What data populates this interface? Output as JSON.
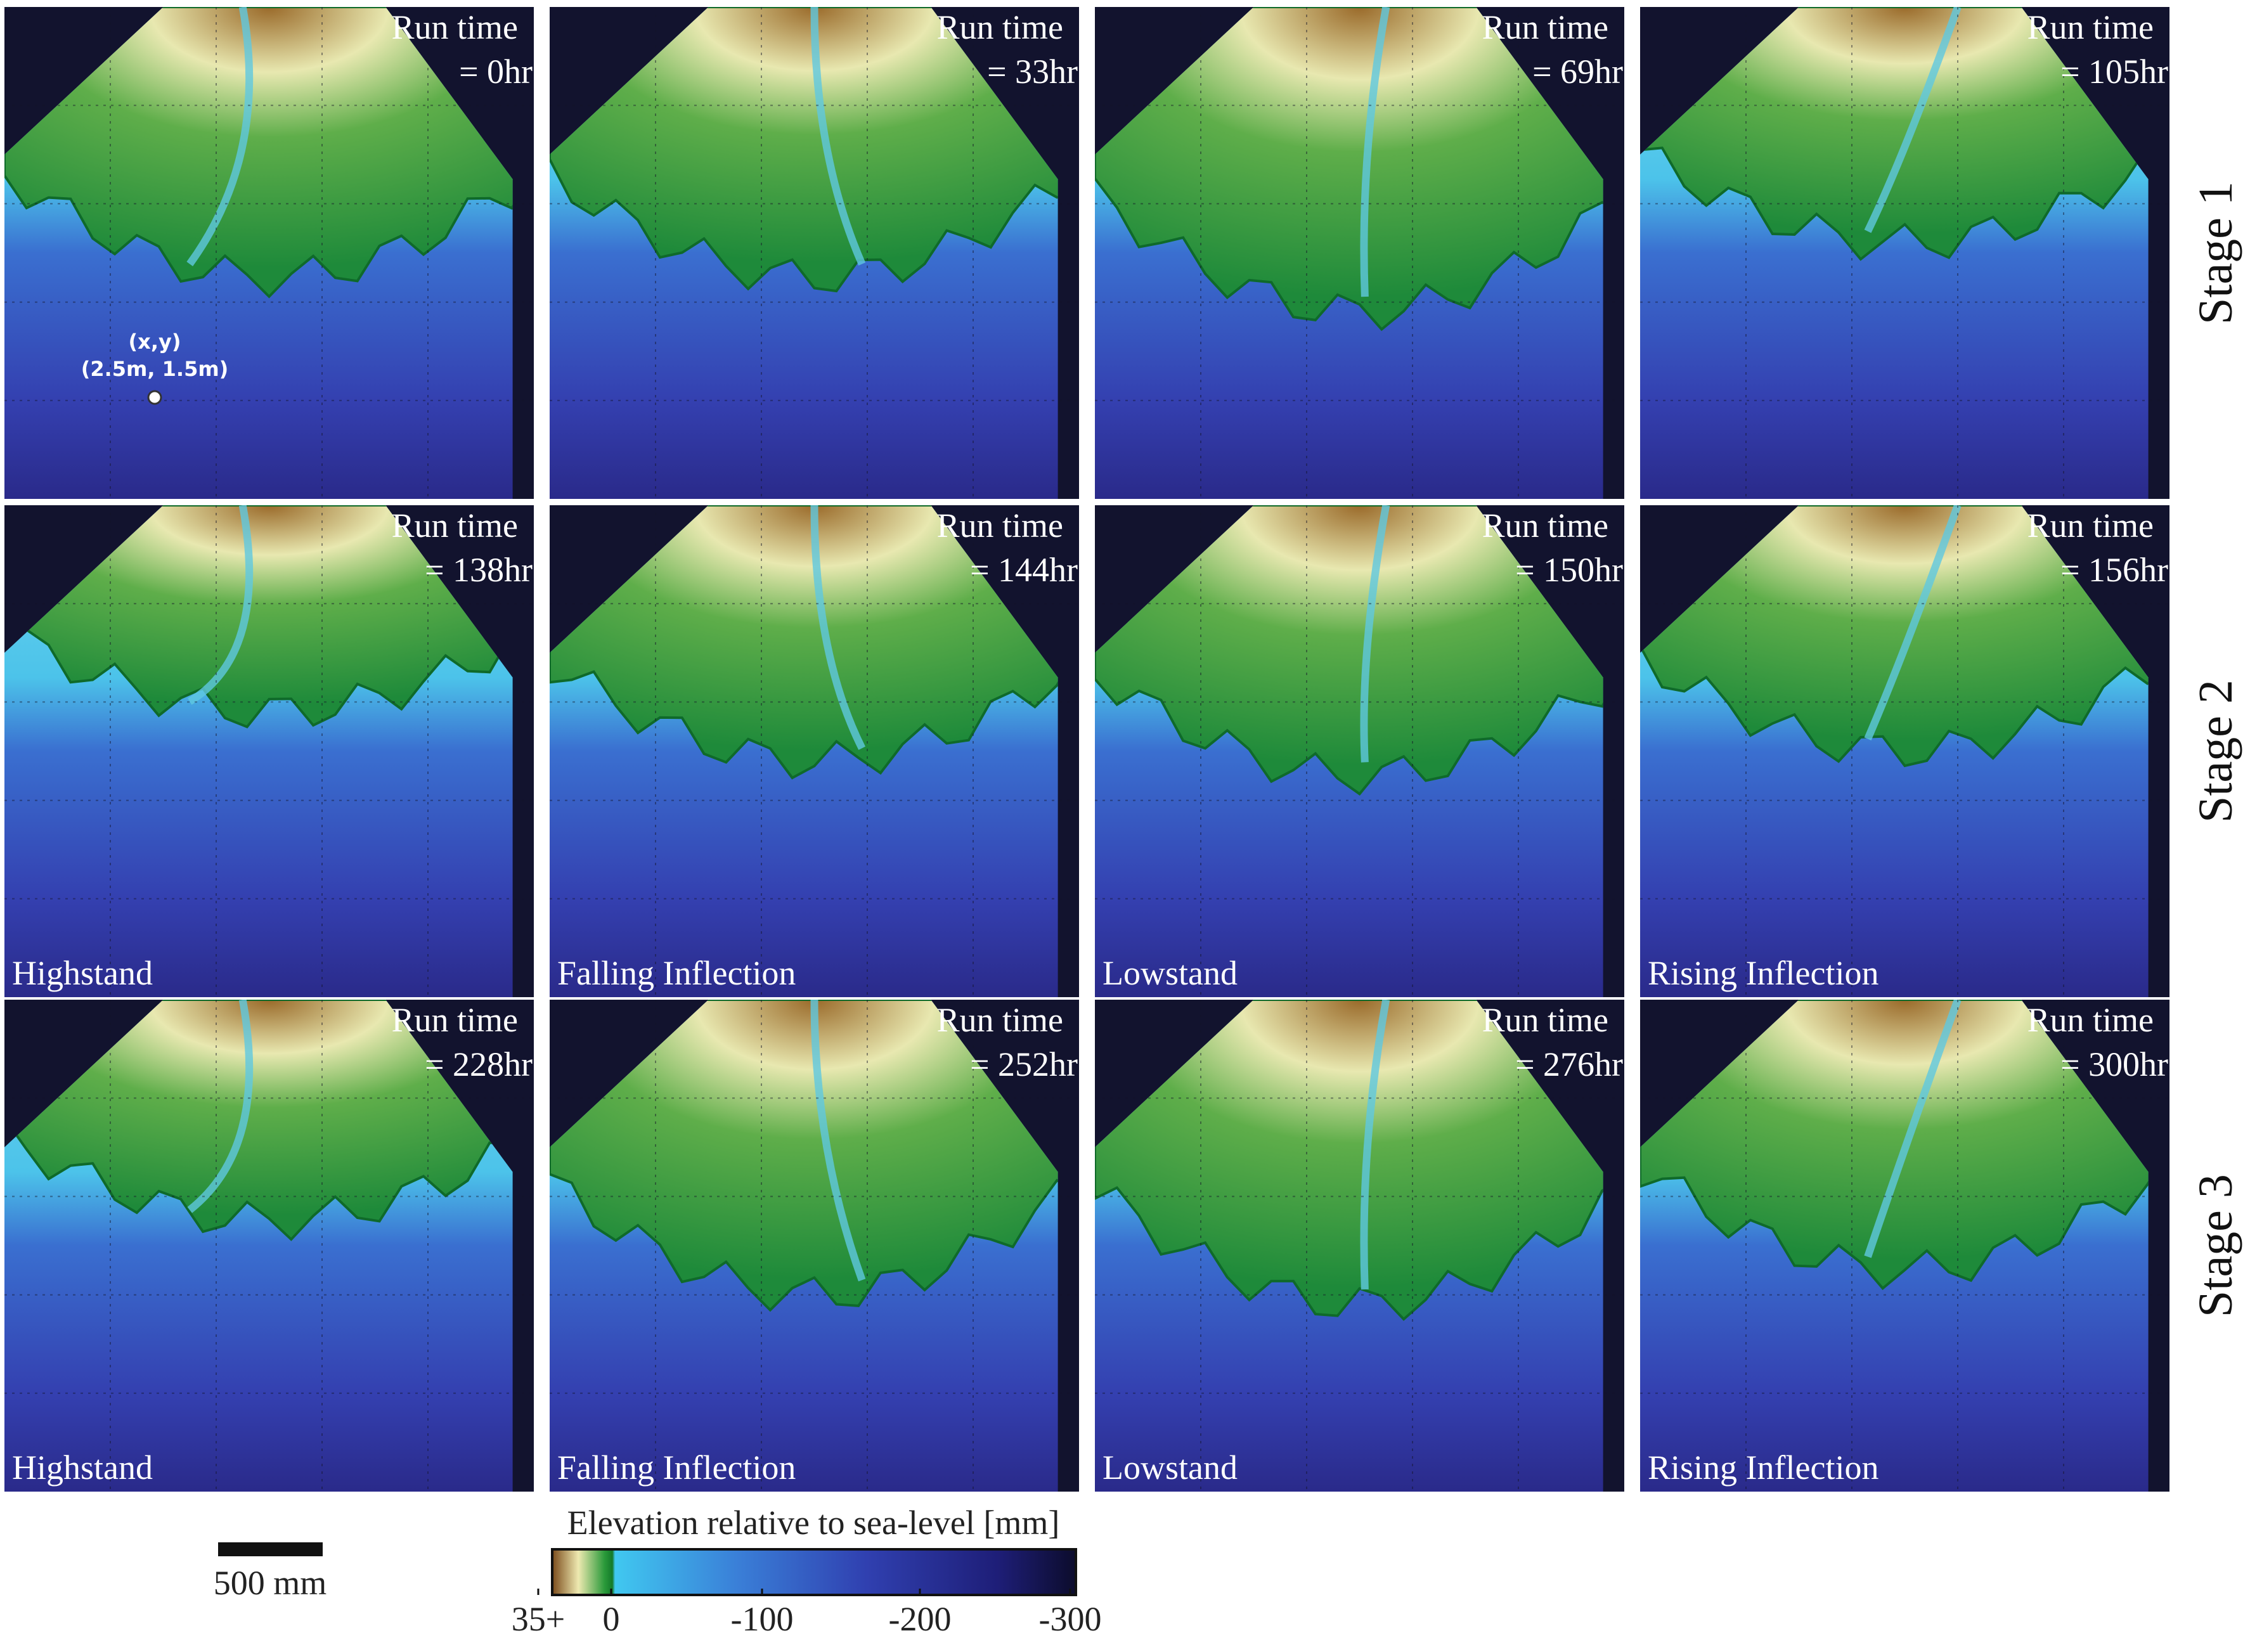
{
  "panels": [
    {
      "run_time": "Run time",
      "time": "= 0hr"
    },
    {
      "run_time": "Run time",
      "time": "= 33hr"
    },
    {
      "run_time": "Run time",
      "time": "= 69hr"
    },
    {
      "run_time": "Run time",
      "time": "= 105hr"
    },
    {
      "run_time": "Run time",
      "time": "= 138hr",
      "phase": "Highstand"
    },
    {
      "run_time": "Run time",
      "time": "= 144hr",
      "phase": "Falling Inflection"
    },
    {
      "run_time": "Run time",
      "time": "= 150hr",
      "phase": "Lowstand"
    },
    {
      "run_time": "Run time",
      "time": "= 156hr",
      "phase": "Rising Inflection"
    },
    {
      "run_time": "Run time",
      "time": "= 228hr",
      "phase": "Highstand"
    },
    {
      "run_time": "Run time",
      "time": "= 252hr",
      "phase": "Falling Inflection"
    },
    {
      "run_time": "Run time",
      "time": "= 276hr",
      "phase": "Lowstand"
    },
    {
      "run_time": "Run time",
      "time": "= 300hr",
      "phase": "Rising Inflection"
    }
  ],
  "stages": [
    "Stage 1",
    "Stage 2",
    "Stage 3"
  ],
  "annotation": {
    "label": "(x,y)",
    "coords": "(2.5m, 1.5m)"
  },
  "scale_bar": {
    "label": "500 mm"
  },
  "colorbar": {
    "title": "Elevation relative to sea-level [mm]",
    "ticks": [
      "35+",
      "0",
      "-100",
      "-200",
      "-300"
    ]
  }
}
